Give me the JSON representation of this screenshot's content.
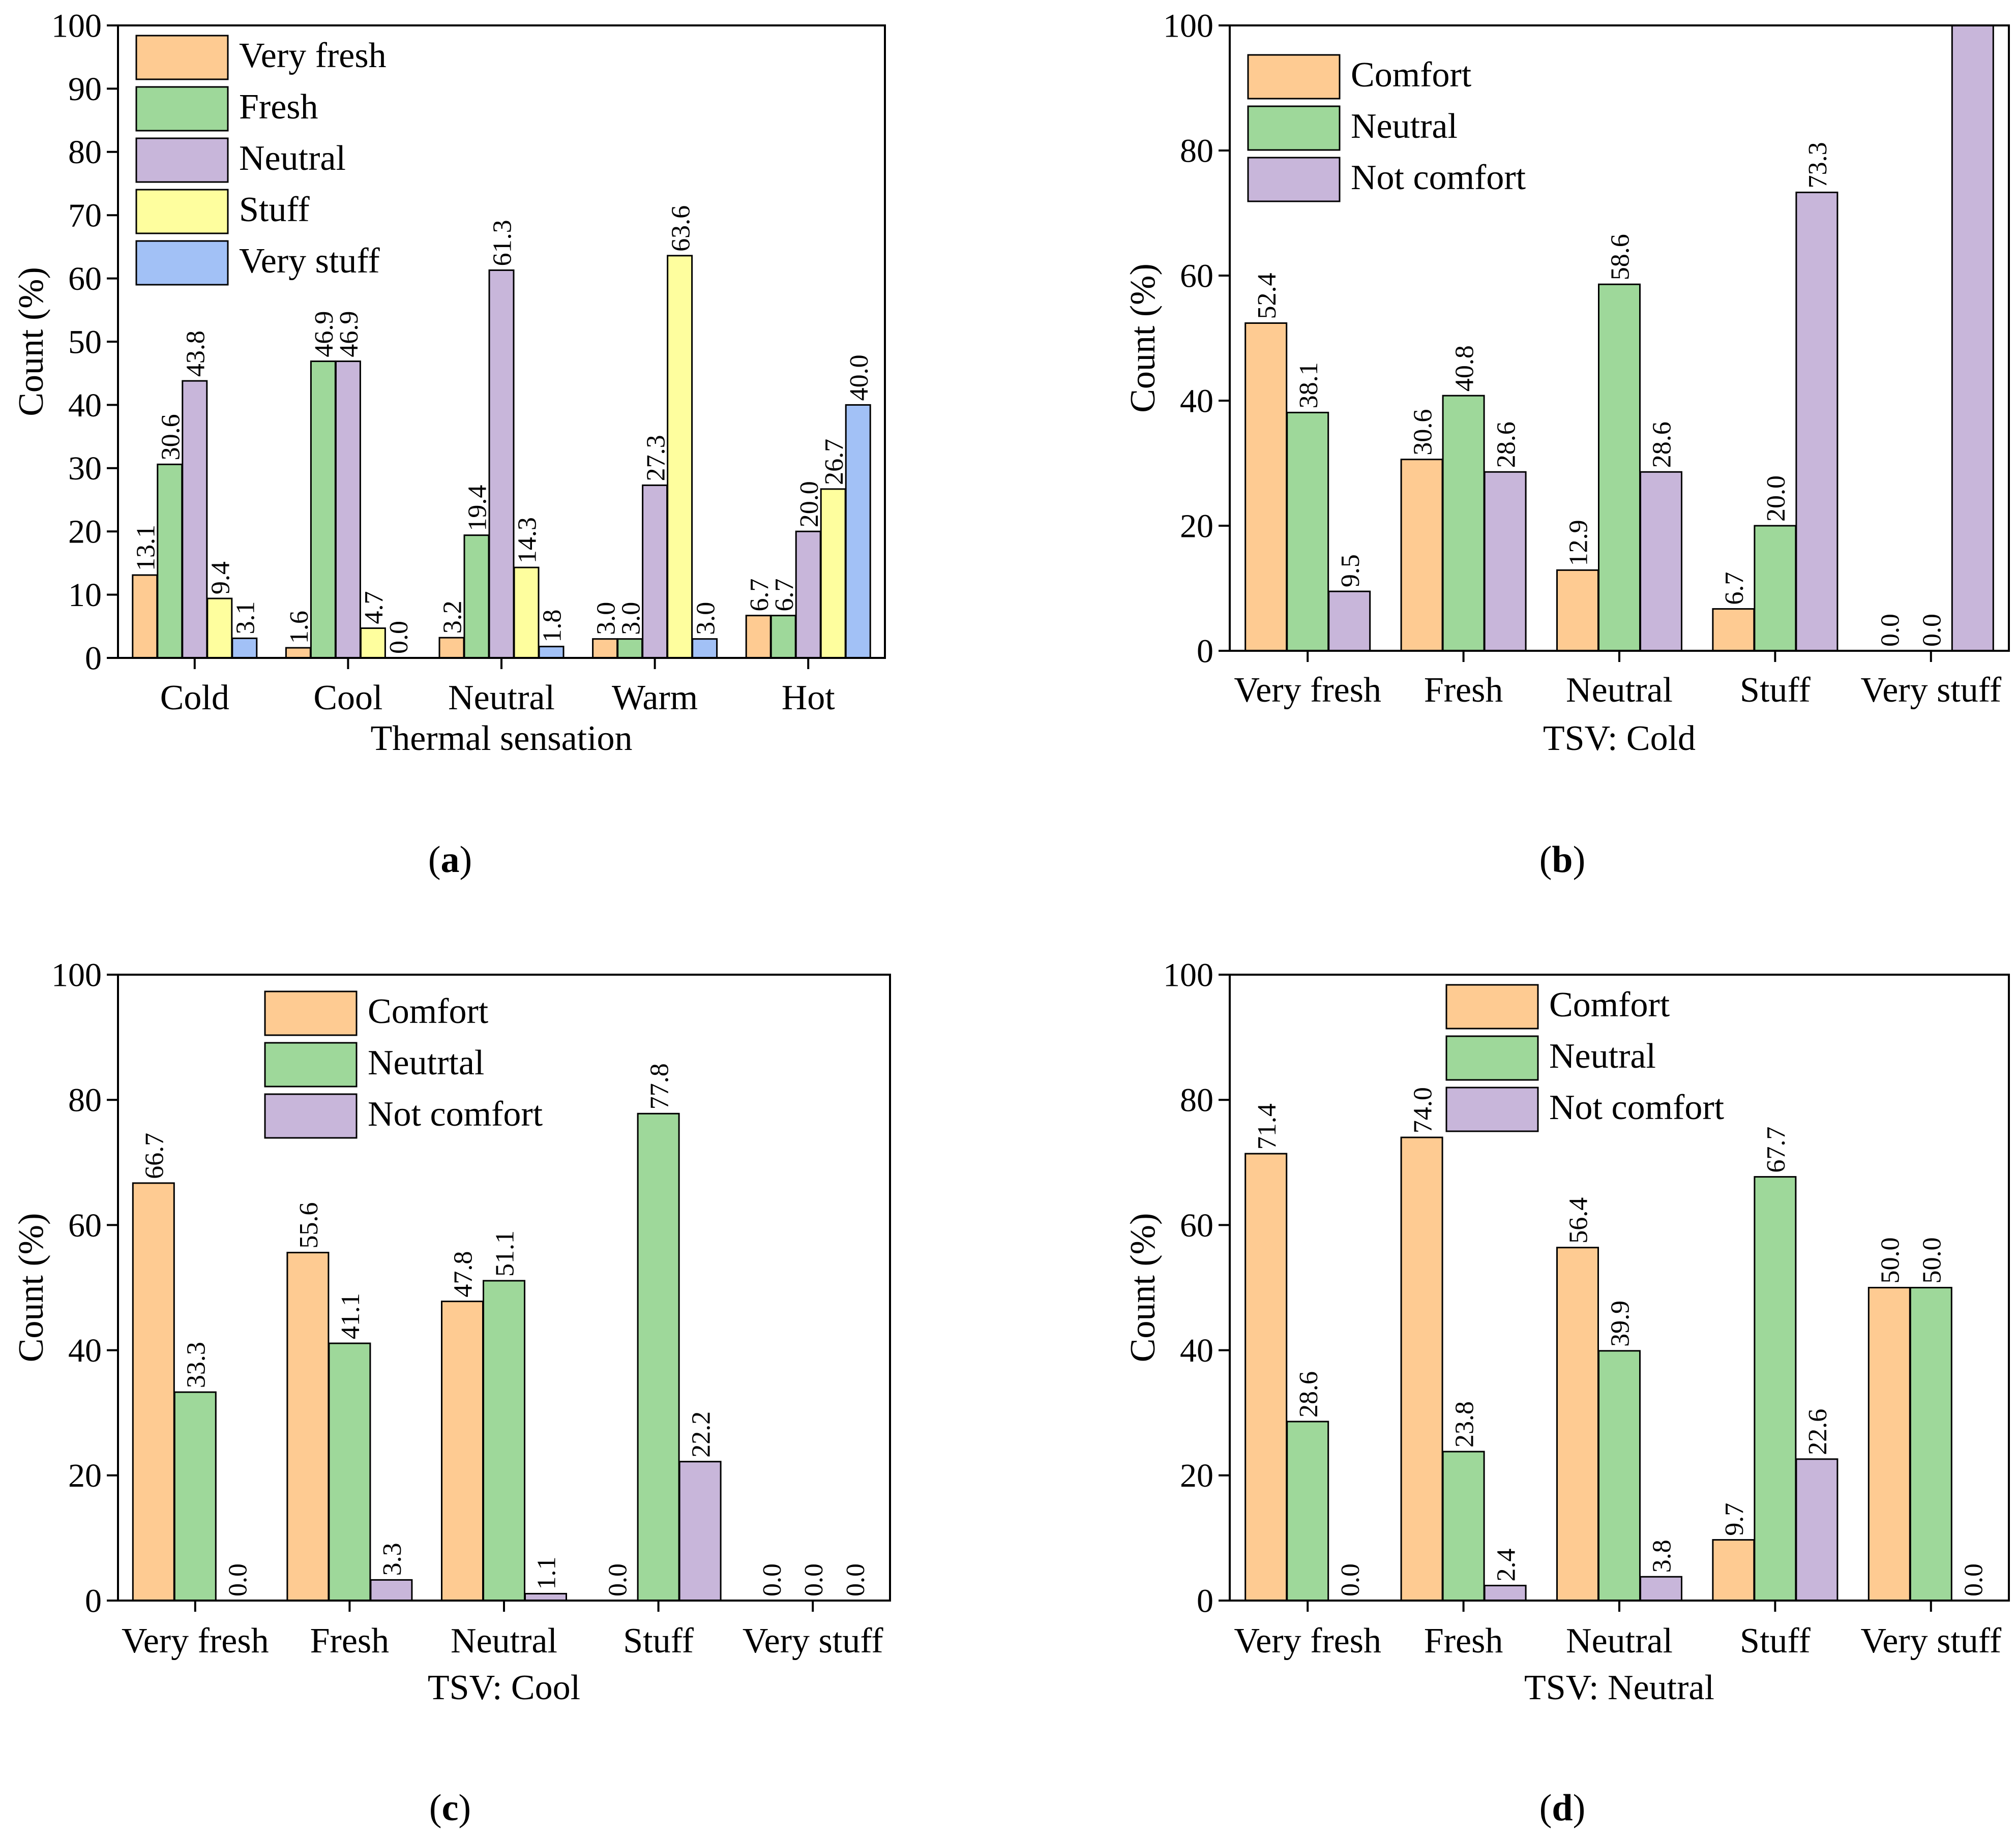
{
  "figure": {
    "panel_ids": [
      "a",
      "b",
      "c",
      "d"
    ]
  },
  "colors": {
    "very_fresh": "#FECB92",
    "fresh": "#9ED89A",
    "neutral": "#C8B6DA",
    "stuff": "#FEFE9E",
    "very_stuff": "#A2C1F6",
    "axis": "#000000"
  },
  "chart_data": [
    {
      "id": "a",
      "type": "bar",
      "xlabel": "Thermal sensation",
      "ylabel": "Count (%)",
      "ylim": [
        0,
        100
      ],
      "yticks": [
        "0",
        "10",
        "20",
        "30",
        "40",
        "50",
        "60",
        "70",
        "80",
        "90",
        "100"
      ],
      "ytick_values": [
        0,
        10,
        20,
        30,
        40,
        50,
        60,
        70,
        80,
        90,
        100
      ],
      "categories": [
        "Cold",
        "Cool",
        "Neutral",
        "Warm",
        "Hot"
      ],
      "legend_position": "top-left",
      "series": [
        {
          "name": "Very fresh",
          "color_key": "very_fresh",
          "values": [
            13.1,
            1.6,
            3.2,
            3.0,
            6.7
          ],
          "labels": [
            "13.1",
            "1.6",
            "3.2",
            "3.0",
            "6.7"
          ]
        },
        {
          "name": "Fresh",
          "color_key": "fresh",
          "values": [
            30.6,
            46.9,
            19.4,
            3.0,
            6.7
          ],
          "labels": [
            "30.6",
            "46.9",
            "19.4",
            "3.0",
            "6.7"
          ]
        },
        {
          "name": "Neutral",
          "color_key": "neutral",
          "values": [
            43.8,
            46.9,
            61.3,
            27.3,
            20.0
          ],
          "labels": [
            "43.8",
            "46.9",
            "61.3",
            "27.3",
            "20.0"
          ]
        },
        {
          "name": "Stuff",
          "color_key": "stuff",
          "values": [
            9.4,
            4.7,
            14.3,
            63.6,
            26.7
          ],
          "labels": [
            "9.4",
            "4.7",
            "14.3",
            "63.6",
            "26.7"
          ]
        },
        {
          "name": "Very stuff",
          "color_key": "very_stuff",
          "values": [
            3.1,
            0.0,
            1.8,
            3.0,
            40.0
          ],
          "labels": [
            "3.1",
            "0.0",
            "1.8",
            "3.0",
            "40.0"
          ]
        }
      ]
    },
    {
      "id": "b",
      "type": "bar",
      "xlabel": "TSV: Cold",
      "ylabel": "Count (%)",
      "ylim": [
        0,
        100
      ],
      "yticks": [
        "0",
        "20",
        "40",
        "60",
        "80",
        "100"
      ],
      "ytick_values": [
        0,
        20,
        40,
        60,
        80,
        100
      ],
      "categories": [
        "Very fresh",
        "Fresh",
        "Neutral",
        "Stuff",
        "Very stuff"
      ],
      "legend_position": "top-left",
      "series": [
        {
          "name": "Comfort",
          "color_key": "very_fresh",
          "values": [
            52.4,
            30.6,
            12.9,
            6.7,
            0.0
          ],
          "labels": [
            "52.4",
            "30.6",
            "12.9",
            "6.7",
            "0.0"
          ]
        },
        {
          "name": "Neutral",
          "color_key": "fresh",
          "values": [
            38.1,
            40.8,
            58.6,
            20.0,
            0.0
          ],
          "labels": [
            "38.1",
            "40.8",
            "58.6",
            "20.0",
            "0.0"
          ]
        },
        {
          "name": "Not comfort",
          "color_key": "neutral",
          "values": [
            9.5,
            28.6,
            28.6,
            73.3,
            100.0
          ],
          "labels": [
            "9.5",
            "28.6",
            "28.6",
            "73.3",
            ""
          ]
        }
      ]
    },
    {
      "id": "c",
      "type": "bar",
      "xlabel": "TSV: Cool",
      "ylabel": "Count (%)",
      "ylim": [
        0,
        100
      ],
      "yticks": [
        "0",
        "20",
        "40",
        "60",
        "80",
        "100"
      ],
      "ytick_values": [
        0,
        20,
        40,
        60,
        80,
        100
      ],
      "categories": [
        "Very fresh",
        "Fresh",
        "Neutral",
        "Stuff",
        "Very stuff"
      ],
      "legend_position": "top-center",
      "series": [
        {
          "name": "Comfort",
          "color_key": "very_fresh",
          "values": [
            66.7,
            55.6,
            47.8,
            0.0,
            0.0
          ],
          "labels": [
            "66.7",
            "55.6",
            "47.8",
            "0.0",
            "0.0"
          ]
        },
        {
          "name": "Neutrtal",
          "color_key": "fresh",
          "values": [
            33.3,
            41.1,
            51.1,
            77.8,
            0.0
          ],
          "labels": [
            "33.3",
            "41.1",
            "51.1",
            "77.8",
            "0.0"
          ]
        },
        {
          "name": "Not comfort",
          "color_key": "neutral",
          "values": [
            0.0,
            3.3,
            1.1,
            22.2,
            0.0
          ],
          "labels": [
            "0.0",
            "3.3",
            "1.1",
            "22.2",
            "0.0"
          ]
        }
      ]
    },
    {
      "id": "d",
      "type": "bar",
      "xlabel": "TSV: Neutral",
      "ylabel": "Count (%)",
      "ylim": [
        0,
        100
      ],
      "yticks": [
        "0",
        "20",
        "40",
        "60",
        "80",
        "100"
      ],
      "ytick_values": [
        0,
        20,
        40,
        60,
        80,
        100
      ],
      "categories": [
        "Very fresh",
        "Fresh",
        "Neutral",
        "Stuff",
        "Very stuff"
      ],
      "legend_position": "top-center",
      "series": [
        {
          "name": "Comfort",
          "color_key": "very_fresh",
          "values": [
            71.4,
            74.0,
            56.4,
            9.7,
            50.0
          ],
          "labels": [
            "71.4",
            "74.0",
            "56.4",
            "9.7",
            "50.0"
          ]
        },
        {
          "name": "Neutral",
          "color_key": "fresh",
          "values": [
            28.6,
            23.8,
            39.9,
            67.7,
            50.0
          ],
          "labels": [
            "28.6",
            "23.8",
            "39.9",
            "67.7",
            "50.0"
          ]
        },
        {
          "name": "Not comfort",
          "color_key": "neutral",
          "values": [
            0.0,
            2.4,
            3.8,
            22.6,
            0.0
          ],
          "labels": [
            "0.0",
            "2.4",
            "3.8",
            "22.6",
            "0.0"
          ]
        }
      ]
    }
  ]
}
